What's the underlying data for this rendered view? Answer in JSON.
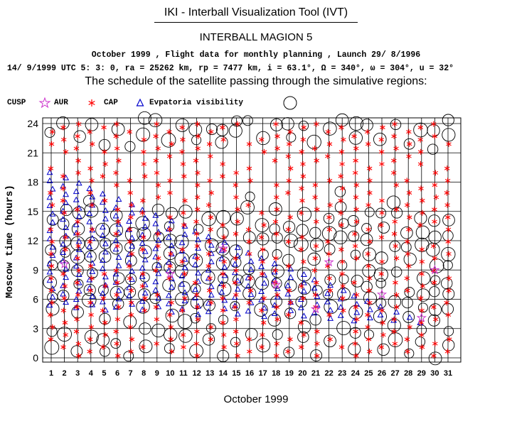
{
  "header": {
    "app_title": "IKI - Interball Visualization Tool (IVT)",
    "mission": "INTERBALL MAGION 5",
    "line1": "October  1999 ,  Flight data for monthly planning ,   Launch 29/ 8/1996",
    "line2": "14/ 9/1999 UTC  5: 3: 0, ra =  25262 km, rp =   7477 km, i = 63.1°, Ω = 340°, ω = 304°, u =  32°",
    "subtitle": "The schedule of the satellite passing through the simulative regions:"
  },
  "legend": {
    "cusp": "CUSP",
    "aur": "AUR",
    "cap": "CAP",
    "evpatoria": "Evpatoria visibility"
  },
  "colors": {
    "cap": "#ff0000",
    "aur": "#cc33cc",
    "evpatoria": "#0000cc",
    "cusp": "#000000",
    "grid": "#000000"
  },
  "chart_data": {
    "type": "scatter",
    "title": "The schedule of the satellite passing through the simulative regions:",
    "xlabel": "October  1999",
    "ylabel": "Moscow time (hours)",
    "xlim": [
      1,
      31
    ],
    "ylim": [
      0,
      24
    ],
    "x_ticks": [
      1,
      2,
      3,
      4,
      5,
      6,
      7,
      8,
      9,
      10,
      11,
      12,
      13,
      14,
      15,
      16,
      17,
      18,
      19,
      20,
      21,
      22,
      23,
      24,
      25,
      26,
      27,
      28,
      29,
      30,
      31
    ],
    "y_ticks": [
      0,
      3,
      6,
      9,
      12,
      15,
      18,
      21,
      24
    ],
    "grid": true,
    "series": [
      {
        "name": "CAP",
        "marker": "asterisk",
        "description": "red asterisk passes, roughly 1.5 h apart through most hours of each day"
      },
      {
        "name": "CUSP",
        "marker": "open circle",
        "description": "black circles clustered in several bands per day"
      },
      {
        "name": "Evpatoria visibility",
        "marker": "open triangle",
        "description": "blue triangles, diagonal band drifting from ~18 h (day 1) down to ~2 h (day 31)"
      },
      {
        "name": "AUR",
        "marker": "open star",
        "description": "sparse magenta stars near 5–10 h"
      }
    ],
    "evpatoria_band": {
      "days": [
        1,
        31
      ],
      "start_hour_day1": 19.0,
      "end_hour_day1": 5.0,
      "drift_hours_per_day": -0.55
    },
    "aur_points": [
      [
        2,
        9.6
      ],
      [
        10,
        8.6
      ],
      [
        14,
        11.2
      ],
      [
        18,
        7.5
      ],
      [
        21,
        5.0
      ],
      [
        22,
        9.8
      ],
      [
        26,
        6.5
      ],
      [
        29,
        4.1
      ],
      [
        30,
        9.0
      ]
    ]
  }
}
